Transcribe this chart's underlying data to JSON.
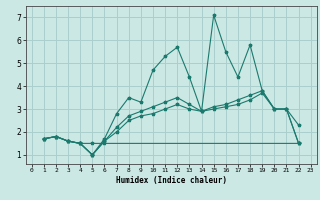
{
  "xlabel": "Humidex (Indice chaleur)",
  "background_color": "#cce8e4",
  "grid_color": "#aacfcc",
  "line_color": "#1a7a6e",
  "xlim": [
    -0.5,
    23.5
  ],
  "ylim": [
    0.6,
    7.5
  ],
  "xticks": [
    0,
    1,
    2,
    3,
    4,
    5,
    6,
    7,
    8,
    9,
    10,
    11,
    12,
    13,
    14,
    15,
    16,
    17,
    18,
    19,
    20,
    21,
    22,
    23
  ],
  "yticks": [
    1,
    2,
    3,
    4,
    5,
    6,
    7
  ],
  "series": [
    {
      "x": [
        1,
        2,
        3,
        4,
        5,
        6,
        7,
        8,
        9,
        10,
        11,
        12,
        13,
        14,
        15,
        16,
        17,
        18,
        19,
        20,
        21,
        22
      ],
      "y": [
        1.7,
        1.8,
        1.6,
        1.5,
        1.0,
        1.7,
        2.8,
        3.5,
        3.3,
        4.7,
        5.3,
        5.7,
        4.4,
        2.9,
        7.1,
        5.5,
        4.4,
        5.8,
        3.8,
        3.0,
        3.0,
        2.3
      ]
    },
    {
      "x": [
        1,
        2,
        3,
        4,
        5,
        6,
        7,
        8,
        9,
        10,
        11,
        12,
        13,
        14,
        15,
        16,
        17,
        18,
        19,
        20,
        21,
        22
      ],
      "y": [
        1.7,
        1.8,
        1.6,
        1.5,
        1.0,
        1.6,
        2.2,
        2.7,
        2.9,
        3.1,
        3.3,
        3.5,
        3.2,
        2.9,
        3.1,
        3.2,
        3.4,
        3.6,
        3.8,
        3.0,
        3.0,
        1.5
      ]
    },
    {
      "x": [
        1,
        2,
        3,
        4,
        5,
        6,
        22
      ],
      "y": [
        1.7,
        1.8,
        1.6,
        1.5,
        1.5,
        1.5,
        1.5
      ]
    },
    {
      "x": [
        1,
        2,
        3,
        4,
        5,
        6,
        7,
        8,
        9,
        10,
        11,
        12,
        13,
        14,
        15,
        16,
        17,
        18,
        19,
        20,
        21,
        22
      ],
      "y": [
        1.7,
        1.8,
        1.6,
        1.5,
        1.0,
        1.6,
        2.0,
        2.5,
        2.7,
        2.8,
        3.0,
        3.2,
        3.0,
        2.9,
        3.0,
        3.1,
        3.2,
        3.4,
        3.7,
        3.0,
        3.0,
        1.5
      ]
    }
  ]
}
